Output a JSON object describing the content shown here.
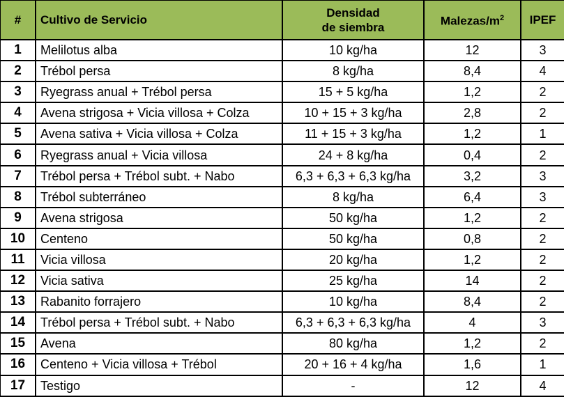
{
  "header": {
    "num": "#",
    "crop": "Cultivo de Servicio",
    "density_line1": "Densidad",
    "density_line2": "de siembra",
    "weeds": "Malezas/m",
    "weeds_sup": "2",
    "ipef": "IPEF",
    "color": "#9bbb59"
  },
  "rows": [
    {
      "n": "1",
      "crop": "Melilotus alba",
      "density": "10 kg/ha",
      "weeds": "12",
      "ipef": "3"
    },
    {
      "n": "2",
      "crop": "Trébol persa",
      "density": "8 kg/ha",
      "weeds": "8,4",
      "ipef": "4"
    },
    {
      "n": "3",
      "crop": "Ryegrass anual + Trébol persa",
      "density": "15 + 5 kg/ha",
      "weeds": "1,2",
      "ipef": "2"
    },
    {
      "n": "4",
      "crop": "Avena strigosa +  Vicia villosa + Colza",
      "density": "10 + 15 + 3 kg/ha",
      "weeds": "2,8",
      "ipef": "2"
    },
    {
      "n": "5",
      "crop": "Avena sativa + Vicia villosa + Colza",
      "density": "11 + 15 + 3 kg/ha",
      "weeds": "1,2",
      "ipef": "1"
    },
    {
      "n": "6",
      "crop": "Ryegrass anual + Vicia villosa",
      "density": "24 + 8 kg/ha",
      "weeds": "0,4",
      "ipef": "2"
    },
    {
      "n": "7",
      "crop": "Trébol persa + Trébol subt. + Nabo",
      "density": "6,3 + 6,3 + 6,3 kg/ha",
      "weeds": "3,2",
      "ipef": "3"
    },
    {
      "n": "8",
      "crop": "Trébol subterráneo",
      "density": "8 kg/ha",
      "weeds": "6,4",
      "ipef": "3"
    },
    {
      "n": "9",
      "crop": "Avena strigosa",
      "density": "50 kg/ha",
      "weeds": "1,2",
      "ipef": "2"
    },
    {
      "n": "10",
      "crop": "Centeno",
      "density": "50 kg/ha",
      "weeds": "0,8",
      "ipef": "2"
    },
    {
      "n": "11",
      "crop": "Vicia villosa",
      "density": "20 kg/ha",
      "weeds": "1,2",
      "ipef": "2"
    },
    {
      "n": "12",
      "crop": "Vicia sativa",
      "density": "25 kg/ha",
      "weeds": "14",
      "ipef": "2"
    },
    {
      "n": "13",
      "crop": "Rabanito forrajero",
      "density": "10 kg/ha",
      "weeds": "8,4",
      "ipef": "2"
    },
    {
      "n": "14",
      "crop": "Trébol persa + Trébol subt. + Nabo",
      "density": "6,3 + 6,3 + 6,3 kg/ha",
      "weeds": "4",
      "ipef": "3"
    },
    {
      "n": "15",
      "crop": "Avena",
      "density": "80 kg/ha",
      "weeds": "1,2",
      "ipef": "2"
    },
    {
      "n": "16",
      "crop": "Centeno + Vicia villosa + Trébol",
      "density": "20 + 16 + 4 kg/ha",
      "weeds": "1,6",
      "ipef": "1"
    },
    {
      "n": "17",
      "crop": "Testigo",
      "density": "-",
      "weeds": "12",
      "ipef": "4"
    }
  ]
}
